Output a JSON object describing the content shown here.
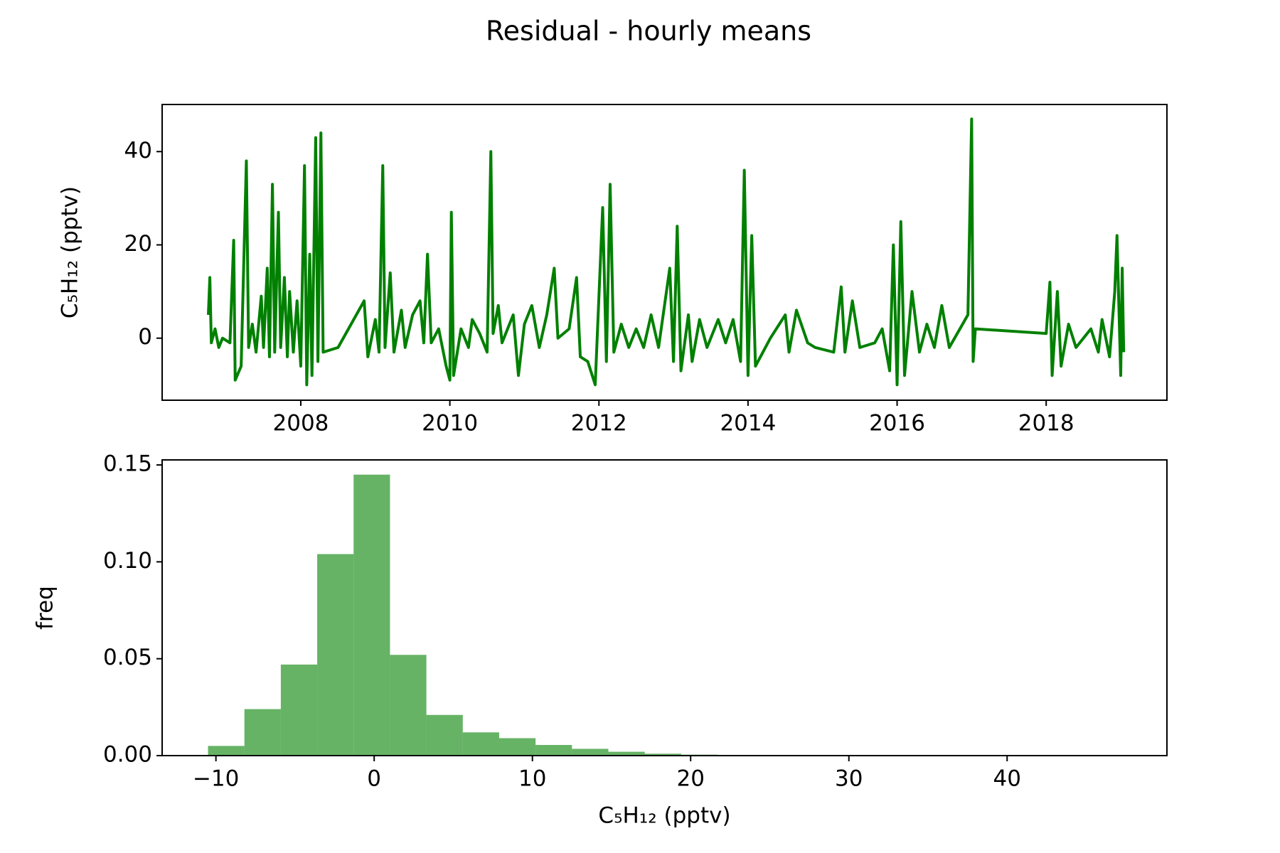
{
  "title": "Residual - hourly means",
  "chart_data": [
    {
      "type": "line",
      "ylabel": "C₅H₁₂ (pptv)",
      "color": "green",
      "xlim": [
        2006.14,
        2019.62
      ],
      "xticks": [
        2008,
        2010,
        2012,
        2014,
        2016,
        2018
      ],
      "ylim": [
        -13.3,
        50.1
      ],
      "yticks": [
        0,
        20,
        40
      ],
      "x": [
        2006.76,
        2006.78,
        2006.8,
        2006.85,
        2006.9,
        2006.95,
        2007.05,
        2007.1,
        2007.12,
        2007.2,
        2007.27,
        2007.3,
        2007.35,
        2007.4,
        2007.47,
        2007.5,
        2007.55,
        2007.58,
        2007.62,
        2007.65,
        2007.7,
        2007.73,
        2007.78,
        2007.82,
        2007.85,
        2007.9,
        2007.95,
        2008.0,
        2008.05,
        2008.08,
        2008.12,
        2008.15,
        2008.2,
        2008.23,
        2008.27,
        2008.3,
        2008.5,
        2008.85,
        2008.9,
        2009.0,
        2009.05,
        2009.1,
        2009.13,
        2009.2,
        2009.25,
        2009.35,
        2009.4,
        2009.5,
        2009.6,
        2009.65,
        2009.7,
        2009.75,
        2009.85,
        2009.95,
        2010.0,
        2010.02,
        2010.05,
        2010.15,
        2010.25,
        2010.3,
        2010.4,
        2010.5,
        2010.55,
        2010.58,
        2010.65,
        2010.7,
        2010.85,
        2010.92,
        2011.0,
        2011.1,
        2011.2,
        2011.3,
        2011.4,
        2011.45,
        2011.6,
        2011.7,
        2011.75,
        2011.85,
        2011.95,
        2012.05,
        2012.1,
        2012.15,
        2012.2,
        2012.3,
        2012.4,
        2012.5,
        2012.6,
        2012.7,
        2012.8,
        2012.95,
        2013.0,
        2013.05,
        2013.1,
        2013.2,
        2013.25,
        2013.35,
        2013.45,
        2013.6,
        2013.7,
        2013.8,
        2013.9,
        2013.95,
        2014.0,
        2014.05,
        2014.1,
        2014.3,
        2014.5,
        2014.55,
        2014.65,
        2014.8,
        2014.9,
        2015.15,
        2015.25,
        2015.3,
        2015.4,
        2015.5,
        2015.7,
        2015.8,
        2015.9,
        2015.95,
        2016.0,
        2016.05,
        2016.1,
        2016.2,
        2016.3,
        2016.4,
        2016.5,
        2016.6,
        2016.7,
        2016.95,
        2017.0,
        2017.02,
        2017.05,
        2018.0,
        2018.05,
        2018.08,
        2018.15,
        2018.2,
        2018.3,
        2018.4,
        2018.5,
        2018.6,
        2018.7,
        2018.75,
        2018.85,
        2018.92,
        2018.95,
        2019.0,
        2019.02,
        2019.04
      ],
      "values": [
        5,
        13,
        -1,
        2,
        -2,
        0,
        -1,
        21,
        -9,
        -6,
        38,
        -2,
        3,
        -3,
        9,
        -2,
        15,
        -4,
        33,
        -3,
        27,
        -2,
        13,
        -4,
        10,
        -3,
        8,
        -6,
        37,
        -10,
        18,
        -8,
        43,
        -5,
        44,
        -3,
        -2,
        8,
        -4,
        4,
        -3,
        37,
        -2,
        14,
        -3,
        6,
        -2,
        5,
        8,
        -1,
        18,
        -1,
        2,
        -6,
        -9,
        27,
        -8,
        2,
        -2,
        4,
        1,
        -3,
        40,
        1,
        7,
        -1,
        5,
        -8,
        3,
        7,
        -2,
        5,
        15,
        0,
        2,
        13,
        -4,
        -5,
        -10,
        28,
        -5,
        33,
        -3,
        3,
        -2,
        2,
        -2,
        5,
        -2,
        15,
        -5,
        24,
        -7,
        5,
        -5,
        4,
        -2,
        4,
        -1,
        4,
        -5,
        36,
        -8,
        22,
        -6,
        0,
        5,
        -3,
        6,
        -1,
        -2,
        -3,
        11,
        -3,
        8,
        -2,
        -1,
        2,
        -7,
        20,
        -10,
        25,
        -8,
        10,
        -3,
        3,
        -2,
        7,
        -2,
        5,
        47,
        -5,
        2,
        1,
        12,
        -8,
        10,
        -6,
        3,
        -2,
        0,
        2,
        -3,
        4,
        -4,
        10,
        22,
        -8,
        15,
        -3
      ]
    },
    {
      "type": "histogram",
      "xlabel": "C₅H₁₂ (pptv)",
      "ylabel": "freq",
      "color": "green",
      "alpha": 0.6,
      "xlim": [
        -13.4,
        50.1
      ],
      "xticks": [
        {
          "value": -10,
          "label": "−10"
        },
        0,
        10,
        20,
        30,
        40
      ],
      "ylim": [
        0,
        0.1526
      ],
      "yticks": [
        {
          "value": 0,
          "label": "0.00"
        },
        0.05,
        {
          "value": 0.1,
          "label": "0.10"
        },
        0.15
      ],
      "bins": [
        -10.5,
        -8.2,
        -5.9,
        -3.6,
        -1.3,
        1.0,
        3.3,
        5.6,
        7.9,
        10.2,
        12.5,
        14.8,
        17.1,
        19.4,
        21.7,
        24.0,
        26.3,
        28.6,
        30.9,
        33.2,
        35.5,
        37.8,
        40.1,
        42.4,
        44.7,
        47.0
      ],
      "values": [
        0.005,
        0.024,
        0.047,
        0.104,
        0.145,
        0.052,
        0.021,
        0.012,
        0.009,
        0.0055,
        0.0035,
        0.002,
        0.001,
        0.0005,
        0.0003,
        0.0002,
        0.0001,
        0.0001,
        5e-05,
        3e-05,
        2e-05,
        1e-05,
        1e-05,
        1e-05,
        1e-05
      ]
    }
  ]
}
